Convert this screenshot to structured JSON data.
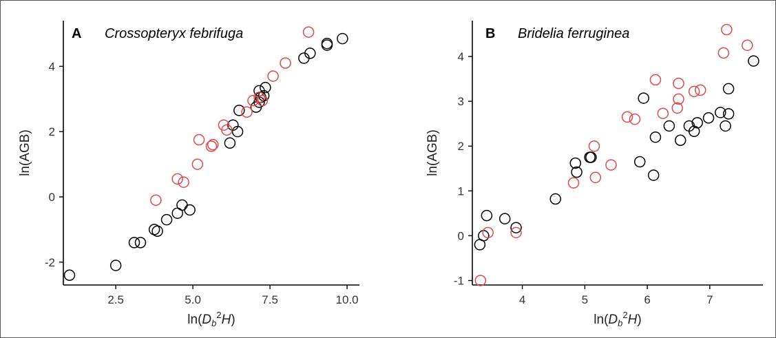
{
  "chart_data": [
    {
      "type": "scatter",
      "panel": "A",
      "title": "Crossopteryx febrifuga",
      "xlabel": "ln(Db2H)",
      "ylabel": "ln(AGB)",
      "xlim": [
        0.8,
        10.4
      ],
      "ylim": [
        -2.7,
        5.4
      ],
      "xticks": [
        2.5,
        5.0,
        7.5,
        10.0
      ],
      "xtick_labels": [
        "2.5",
        "5.0",
        "7.5",
        "10.0"
      ],
      "yticks": [
        -2,
        0,
        2,
        4
      ],
      "ytick_labels": [
        "-2",
        "0",
        "2",
        "4"
      ],
      "grid": false,
      "series": [
        {
          "color": "#000000",
          "points": [
            [
              1.0,
              -2.4
            ],
            [
              2.5,
              -2.1
            ],
            [
              3.1,
              -1.4
            ],
            [
              3.3,
              -1.4
            ],
            [
              3.75,
              -1.0
            ],
            [
              3.85,
              -1.05
            ],
            [
              4.15,
              -0.7
            ],
            [
              4.5,
              -0.5
            ],
            [
              4.65,
              -0.25
            ],
            [
              4.9,
              -0.4
            ],
            [
              6.2,
              1.65
            ],
            [
              6.3,
              2.2
            ],
            [
              6.45,
              2.0
            ],
            [
              6.5,
              2.65
            ],
            [
              7.05,
              2.75
            ],
            [
              7.15,
              2.9
            ],
            [
              7.15,
              3.25
            ],
            [
              7.2,
              3.05
            ],
            [
              7.3,
              3.1
            ],
            [
              7.35,
              3.35
            ],
            [
              8.6,
              4.25
            ],
            [
              8.8,
              4.4
            ],
            [
              9.35,
              4.7
            ],
            [
              9.35,
              4.65
            ],
            [
              9.85,
              4.85
            ]
          ]
        },
        {
          "color": "#e0484a",
          "points": [
            [
              3.8,
              -0.1
            ],
            [
              4.5,
              0.55
            ],
            [
              4.7,
              0.45
            ],
            [
              5.15,
              1.0
            ],
            [
              5.2,
              1.75
            ],
            [
              5.6,
              1.55
            ],
            [
              5.65,
              1.6
            ],
            [
              6.0,
              2.2
            ],
            [
              6.1,
              2.05
            ],
            [
              6.75,
              2.6
            ],
            [
              6.95,
              2.95
            ],
            [
              7.15,
              3.05
            ],
            [
              7.25,
              2.95
            ],
            [
              7.6,
              3.7
            ],
            [
              8.0,
              4.1
            ],
            [
              8.75,
              5.05
            ]
          ]
        }
      ]
    },
    {
      "type": "scatter",
      "panel": "B",
      "title": "Bridelia ferruginea",
      "xlabel": "ln(Db2H)",
      "ylabel": "ln(AGB)",
      "xlim": [
        3.2,
        7.85
      ],
      "ylim": [
        -1.1,
        4.8
      ],
      "xticks": [
        4,
        5,
        6,
        7
      ],
      "xtick_labels": [
        "4",
        "5",
        "6",
        "7"
      ],
      "yticks": [
        -1,
        0,
        1,
        2,
        3,
        4
      ],
      "ytick_labels": [
        "-1",
        "0",
        "1",
        "2",
        "3",
        "4"
      ],
      "grid": false,
      "series": [
        {
          "color": "#000000",
          "points": [
            [
              3.32,
              -0.2
            ],
            [
              3.38,
              0.0
            ],
            [
              3.43,
              0.45
            ],
            [
              3.72,
              0.38
            ],
            [
              3.9,
              0.18
            ],
            [
              4.53,
              0.82
            ],
            [
              4.85,
              1.62
            ],
            [
              4.87,
              1.42
            ],
            [
              5.08,
              1.75
            ],
            [
              5.1,
              1.75
            ],
            [
              5.88,
              1.65
            ],
            [
              5.94,
              3.07
            ],
            [
              6.1,
              1.35
            ],
            [
              6.13,
              2.2
            ],
            [
              6.35,
              2.45
            ],
            [
              6.53,
              2.13
            ],
            [
              6.67,
              2.45
            ],
            [
              6.75,
              2.33
            ],
            [
              6.8,
              2.52
            ],
            [
              6.98,
              2.63
            ],
            [
              7.17,
              2.75
            ],
            [
              7.25,
              2.45
            ],
            [
              7.3,
              2.72
            ],
            [
              7.3,
              3.28
            ],
            [
              7.7,
              3.9
            ]
          ]
        },
        {
          "color": "#e0484a",
          "points": [
            [
              3.33,
              -1.0
            ],
            [
              3.45,
              0.07
            ],
            [
              3.9,
              0.07
            ],
            [
              4.82,
              1.18
            ],
            [
              5.15,
              2.0
            ],
            [
              5.17,
              1.3
            ],
            [
              5.42,
              1.58
            ],
            [
              5.68,
              2.65
            ],
            [
              5.8,
              2.6
            ],
            [
              6.13,
              3.48
            ],
            [
              6.25,
              2.73
            ],
            [
              6.48,
              2.85
            ],
            [
              6.5,
              3.05
            ],
            [
              6.5,
              3.4
            ],
            [
              6.75,
              3.22
            ],
            [
              6.85,
              3.25
            ],
            [
              7.22,
              4.08
            ],
            [
              7.27,
              4.6
            ],
            [
              7.6,
              4.25
            ]
          ]
        }
      ]
    }
  ]
}
